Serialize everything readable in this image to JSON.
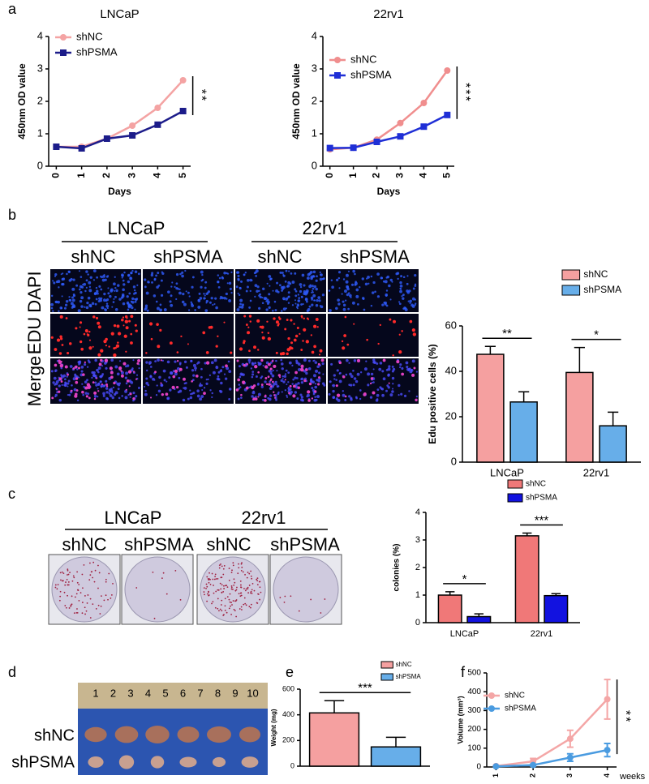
{
  "panel_labels": [
    "a",
    "b",
    "c",
    "d",
    "e",
    "f"
  ],
  "edu_panel": {
    "cell_lines": [
      "LNCaP",
      "22rv1"
    ],
    "groups": [
      "shNC",
      "shPSMA",
      "shNC",
      "shPSMA"
    ],
    "stains": [
      "DAPI",
      "EDU",
      "Merge"
    ]
  },
  "colony_panel": {
    "cell_lines": [
      "LNCaP",
      "22rv1"
    ],
    "groups": [
      "shNC",
      "shPSMA",
      "shNC",
      "shPSMA"
    ]
  },
  "tumor_panel": {
    "ruler": [
      "1",
      "2",
      "3",
      "4",
      "5",
      "6",
      "7",
      "8",
      "9",
      "10"
    ],
    "groups": [
      "shNC",
      "shPSMA"
    ]
  },
  "chart_data": [
    {
      "type": "line",
      "title": "LNCaP",
      "x_label": "Days",
      "y_label": "450nm OD value",
      "x": [
        0,
        1,
        2,
        3,
        4,
        5
      ],
      "xlim": [
        -0.3,
        5.3
      ],
      "xticks": [
        0,
        1,
        2,
        3,
        4,
        5
      ],
      "ylim": [
        0,
        4
      ],
      "yticks": [
        0,
        1,
        2,
        3,
        4
      ],
      "annotation": "**",
      "series": [
        {
          "name": "shNC",
          "color": "#f4a3a3",
          "marker": "circle",
          "values": [
            0.6,
            0.6,
            0.85,
            1.25,
            1.8,
            2.65
          ]
        },
        {
          "name": "shPSMA",
          "color": "#1c1c8a",
          "marker": "square",
          "values": [
            0.6,
            0.55,
            0.85,
            0.95,
            1.28,
            1.7
          ]
        }
      ]
    },
    {
      "type": "line",
      "title": "22rv1",
      "x_label": "Days",
      "y_label": "450nm OD value",
      "x": [
        0,
        1,
        2,
        3,
        4,
        5
      ],
      "xlim": [
        -0.3,
        5.3
      ],
      "xticks": [
        0,
        1,
        2,
        3,
        4,
        5
      ],
      "ylim": [
        0,
        4
      ],
      "yticks": [
        0,
        1,
        2,
        3,
        4
      ],
      "annotation": "***",
      "series": [
        {
          "name": "shNC",
          "color": "#f08e8e",
          "marker": "circle",
          "values": [
            0.52,
            0.57,
            0.82,
            1.33,
            1.95,
            2.95
          ]
        },
        {
          "name": "shPSMA",
          "color": "#1f2fd6",
          "marker": "square",
          "values": [
            0.56,
            0.57,
            0.75,
            0.92,
            1.22,
            1.58
          ]
        }
      ]
    },
    {
      "type": "bar",
      "y_label": "Edu positive cells (%)",
      "categories": [
        "LNCaP",
        "22rv1"
      ],
      "ylim": [
        0,
        60
      ],
      "yticks": [
        0,
        20,
        40,
        60
      ],
      "annotations": [
        "**",
        "*"
      ],
      "series": [
        {
          "name": "shNC",
          "color": "#f5a0a0",
          "values": [
            47.5,
            39.5
          ],
          "errors": [
            3.5,
            11
          ]
        },
        {
          "name": "shPSMA",
          "color": "#67aee9",
          "values": [
            26.5,
            16
          ],
          "errors": [
            4.5,
            6
          ]
        }
      ]
    },
    {
      "type": "bar",
      "y_label": "colonies (%)",
      "categories": [
        "LNCaP",
        "22rv1"
      ],
      "ylim": [
        0,
        4
      ],
      "yticks": [
        0,
        1,
        2,
        3,
        4
      ],
      "annotations": [
        "*",
        "***"
      ],
      "series": [
        {
          "name": "shNC",
          "color": "#f07878",
          "values": [
            1.0,
            3.15
          ],
          "errors": [
            0.12,
            0.1
          ]
        },
        {
          "name": "shPSMA",
          "color": "#1212e0",
          "values": [
            0.22,
            0.98
          ],
          "errors": [
            0.1,
            0.07
          ]
        }
      ]
    },
    {
      "type": "bar",
      "y_label": "Weight (mg)",
      "categories": [
        null
      ],
      "ylim": [
        0,
        600
      ],
      "yticks": [
        0,
        200,
        400,
        600
      ],
      "annotations": [
        "***"
      ],
      "series": [
        {
          "name": "shNC",
          "color": "#f5a0a0",
          "values": [
            415
          ],
          "errors": [
            95
          ]
        },
        {
          "name": "shPSMA",
          "color": "#67aee9",
          "values": [
            150
          ],
          "errors": [
            75
          ]
        }
      ]
    },
    {
      "type": "line",
      "x_label": "weeks",
      "y_label": "Volume (mm³)",
      "x": [
        1,
        2,
        3,
        4
      ],
      "xlim": [
        0.75,
        4.25
      ],
      "xticks": [
        1,
        2,
        3,
        4
      ],
      "ylim": [
        0,
        500
      ],
      "yticks": [
        0,
        100,
        200,
        300,
        400,
        500
      ],
      "annotation": "**",
      "series": [
        {
          "name": "shNC",
          "color": "#f4a6a6",
          "marker": "circle",
          "values": [
            5,
            30,
            150,
            360
          ],
          "errors": [
            3,
            15,
            45,
            105
          ]
        },
        {
          "name": "shPSMA",
          "color": "#4a9be0",
          "marker": "circle",
          "values": [
            3,
            10,
            50,
            90
          ],
          "errors": [
            2,
            5,
            20,
            35
          ]
        }
      ]
    }
  ]
}
